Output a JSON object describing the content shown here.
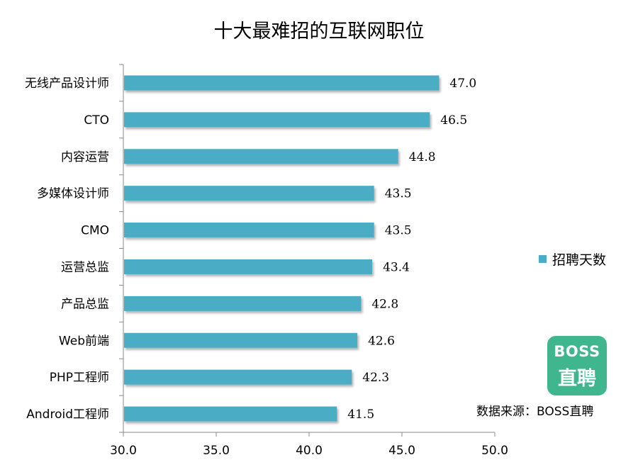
{
  "title": "十大最难招的互联网职位",
  "legend": {
    "label": "招聘天数"
  },
  "logo": {
    "line1": "BOSS",
    "line2": "直聘"
  },
  "source": "数据来源：BOSS直聘",
  "colors": {
    "bar": "#4bacc6",
    "logo": "#3fb68e"
  },
  "chart_data": {
    "type": "bar",
    "orientation": "horizontal",
    "categories": [
      "无线产品设计师",
      "CTO",
      "内容运营",
      "多媒体设计师",
      "CMO",
      "运营总监",
      "产品总监",
      "Web前端",
      "PHP工程师",
      "Android工程师"
    ],
    "series": [
      {
        "name": "招聘天数",
        "values": [
          47.0,
          46.5,
          44.8,
          43.5,
          43.5,
          43.4,
          42.8,
          42.6,
          42.3,
          41.5
        ]
      }
    ],
    "value_labels": [
      "47.0",
      "46.5",
      "44.8",
      "43.5",
      "43.5",
      "43.4",
      "42.8",
      "42.6",
      "42.3",
      "41.5"
    ],
    "xlim": [
      30.0,
      50.0
    ],
    "x_ticks": [
      "30.0",
      "35.0",
      "40.0",
      "45.0",
      "50.0"
    ],
    "grid": false,
    "legend_position": "right"
  }
}
